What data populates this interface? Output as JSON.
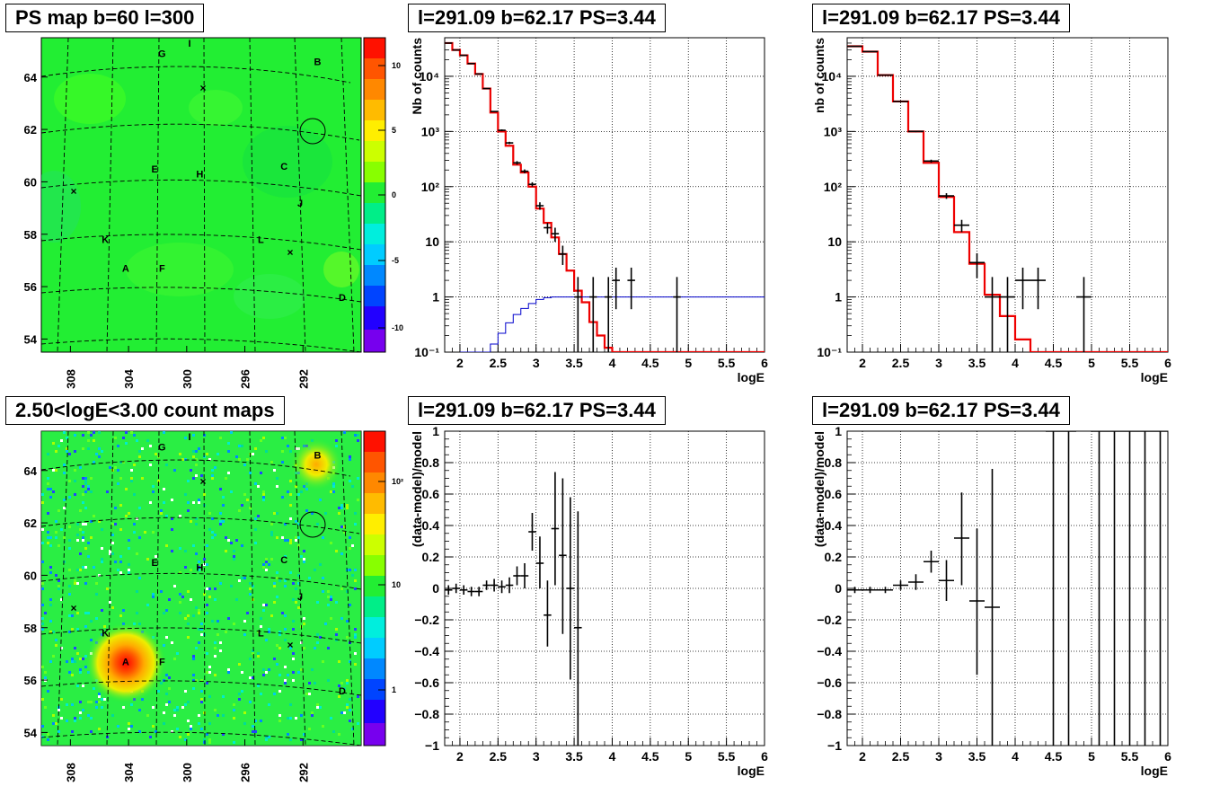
{
  "panels": {
    "map_top_title": "PS map b=60 l=300",
    "map_bottom_title": "2.50<logE<3.00 count maps",
    "spec_title": "l=291.09 b=62.17 PS=3.44"
  },
  "map": {
    "lat_ticks": [
      "54",
      "56",
      "58",
      "60",
      "62",
      "64"
    ],
    "lon_ticks": [
      "308",
      "304",
      "300",
      "296",
      "292"
    ],
    "sources": [
      {
        "label": "A",
        "lon": 304.2,
        "lat": 56.7
      },
      {
        "label": "B",
        "lon": 291.0,
        "lat": 64.6
      },
      {
        "label": "C",
        "lon": 293.3,
        "lat": 60.6
      },
      {
        "label": "D",
        "lon": 289.3,
        "lat": 55.6
      },
      {
        "label": "E",
        "lon": 302.2,
        "lat": 60.5
      },
      {
        "label": "F",
        "lon": 301.7,
        "lat": 56.7
      },
      {
        "label": "G",
        "lon": 301.7,
        "lat": 64.9
      },
      {
        "label": "H",
        "lon": 299.1,
        "lat": 60.3
      },
      {
        "label": "I",
        "lon": 299.8,
        "lat": 65.3
      },
      {
        "label": "J",
        "lon": 292.2,
        "lat": 59.2
      },
      {
        "label": "K",
        "lon": 305.6,
        "lat": 57.8
      },
      {
        "label": "L",
        "lon": 294.9,
        "lat": 57.8
      }
    ],
    "ps_palette_ticks": [
      "10",
      "5",
      "0",
      "-5",
      "-10"
    ],
    "count_palette_ticks": [
      "10²",
      "10",
      "1"
    ]
  },
  "colors": {
    "model": "#ee0000",
    "efficiency": "#0000cc",
    "data": "#000000",
    "map_fill": "#22ee33"
  },
  "chart_data": [
    {
      "type": "line",
      "id": "spectrum-full",
      "title": "l=291.09 b=62.17 PS=3.44",
      "xlabel": "logE",
      "ylabel": "Nb of counts",
      "xlim": [
        1.8,
        6
      ],
      "ylim": [
        0.1,
        50000
      ],
      "log_y": true,
      "grid": true,
      "x_ticks": [
        "2",
        "2.5",
        "3",
        "3.5",
        "4",
        "4.5",
        "5",
        "5.5",
        "6"
      ],
      "y_ticks": [
        "10⁻¹",
        "1",
        "10",
        "10²",
        "10³",
        "10⁴"
      ],
      "series": [
        {
          "role": "model",
          "bin_edges": [
            1.8,
            1.9,
            2.0,
            2.1,
            2.2,
            2.3,
            2.4,
            2.5,
            2.6,
            2.7,
            2.8,
            2.9,
            3.0,
            3.1,
            3.2,
            3.3,
            3.4,
            3.5,
            3.6,
            3.7,
            3.8,
            3.9,
            4.0,
            6.0
          ],
          "values": [
            40000,
            30000,
            24000,
            17000,
            11000,
            6000,
            2200,
            1000,
            550,
            250,
            180,
            100,
            40,
            22,
            12,
            6,
            3,
            1.3,
            0.8,
            0.35,
            0.2,
            0.12,
            0.1
          ]
        },
        {
          "role": "efficiency",
          "bin_edges": [
            2.0,
            2.1,
            2.2,
            2.3,
            2.4,
            2.5,
            2.6,
            2.7,
            2.8,
            2.9,
            3.0,
            3.1,
            3.2,
            6.0
          ],
          "values": [
            0.1,
            0.1,
            0.1,
            0.1,
            0.14,
            0.22,
            0.34,
            0.48,
            0.62,
            0.76,
            0.9,
            0.97,
            1.0
          ]
        },
        {
          "role": "data",
          "points": [
            {
              "x": 1.85,
              "y": 40000,
              "lo": 39500,
              "hi": 40500
            },
            {
              "x": 1.95,
              "y": 30000,
              "lo": 29600,
              "hi": 30400
            },
            {
              "x": 2.05,
              "y": 24000,
              "lo": 23600,
              "hi": 24400
            },
            {
              "x": 2.15,
              "y": 17000,
              "lo": 16700,
              "hi": 17300
            },
            {
              "x": 2.25,
              "y": 11000,
              "lo": 10800,
              "hi": 11200
            },
            {
              "x": 2.35,
              "y": 6000,
              "lo": 5900,
              "hi": 6100
            },
            {
              "x": 2.45,
              "y": 2300,
              "lo": 2250,
              "hi": 2350
            },
            {
              "x": 2.55,
              "y": 1050,
              "lo": 1010,
              "hi": 1090
            },
            {
              "x": 2.65,
              "y": 620,
              "lo": 590,
              "hi": 650
            },
            {
              "x": 2.75,
              "y": 270,
              "lo": 250,
              "hi": 290
            },
            {
              "x": 2.85,
              "y": 190,
              "lo": 175,
              "hi": 205
            },
            {
              "x": 2.95,
              "y": 110,
              "lo": 100,
              "hi": 120
            },
            {
              "x": 3.05,
              "y": 45,
              "lo": 38,
              "hi": 52
            },
            {
              "x": 3.15,
              "y": 18,
              "lo": 14,
              "hi": 22
            },
            {
              "x": 3.25,
              "y": 14,
              "lo": 10,
              "hi": 18
            },
            {
              "x": 3.35,
              "y": 6,
              "lo": 3.8,
              "hi": 8.5
            },
            {
              "x": 3.55,
              "y": 1,
              "lo": 0.1,
              "hi": 2.3
            },
            {
              "x": 3.75,
              "y": 1,
              "lo": 0.1,
              "hi": 2.3
            },
            {
              "x": 3.95,
              "y": 1,
              "lo": 0.1,
              "hi": 2.3
            },
            {
              "x": 4.05,
              "y": 2,
              "lo": 0.6,
              "hi": 3.4
            },
            {
              "x": 4.25,
              "y": 2,
              "lo": 0.6,
              "hi": 3.4
            },
            {
              "x": 4.85,
              "y": 1,
              "lo": 0.1,
              "hi": 2.3
            }
          ]
        }
      ]
    },
    {
      "type": "line",
      "id": "spectrum-rebinned",
      "title": "l=291.09 b=62.17 PS=3.44",
      "xlabel": "logE",
      "ylabel": "nb of counts",
      "xlim": [
        1.8,
        6
      ],
      "ylim": [
        0.1,
        50000
      ],
      "log_y": true,
      "grid": true,
      "x_ticks": [
        "2",
        "2.5",
        "3",
        "3.5",
        "4",
        "4.5",
        "5",
        "5.5",
        "6"
      ],
      "y_ticks": [
        "10⁻¹",
        "1",
        "10",
        "10²",
        "10³",
        "10⁴"
      ],
      "series": [
        {
          "role": "model",
          "bin_edges": [
            1.8,
            2.0,
            2.2,
            2.4,
            2.6,
            2.8,
            3.0,
            3.2,
            3.4,
            3.6,
            3.8,
            4.0,
            4.2,
            6.0
          ],
          "values": [
            35000,
            28000,
            10500,
            3500,
            1000,
            270,
            65,
            15,
            4,
            1.1,
            0.45,
            0.17,
            0.1
          ]
        },
        {
          "role": "data",
          "points": [
            {
              "x": 1.9,
              "y": 35000,
              "lo": 34600,
              "hi": 35400
            },
            {
              "x": 2.1,
              "y": 28000,
              "lo": 27600,
              "hi": 28400
            },
            {
              "x": 2.3,
              "y": 10500,
              "lo": 10300,
              "hi": 10700
            },
            {
              "x": 2.5,
              "y": 3500,
              "lo": 3440,
              "hi": 3560
            },
            {
              "x": 2.7,
              "y": 1000,
              "lo": 970,
              "hi": 1030
            },
            {
              "x": 2.9,
              "y": 290,
              "lo": 272,
              "hi": 308
            },
            {
              "x": 3.1,
              "y": 68,
              "lo": 60,
              "hi": 76
            },
            {
              "x": 3.3,
              "y": 20,
              "lo": 15,
              "hi": 25
            },
            {
              "x": 3.5,
              "y": 4.2,
              "lo": 2.2,
              "hi": 6.2
            },
            {
              "x": 3.7,
              "y": 1,
              "lo": 0.1,
              "hi": 2.3
            },
            {
              "x": 3.9,
              "y": 1,
              "lo": 0.1,
              "hi": 2.3
            },
            {
              "x": 4.1,
              "y": 2,
              "lo": 0.6,
              "hi": 3.4
            },
            {
              "x": 4.3,
              "y": 2,
              "lo": 0.6,
              "hi": 3.4
            },
            {
              "x": 4.9,
              "y": 1,
              "lo": 0.1,
              "hi": 2.3
            }
          ]
        }
      ]
    },
    {
      "type": "scatter",
      "id": "residual-full",
      "title": "l=291.09 b=62.17 PS=3.44",
      "xlabel": "logE",
      "ylabel": "(data-model)/model",
      "xlim": [
        1.8,
        6
      ],
      "ylim": [
        -1,
        1
      ],
      "grid": true,
      "x_ticks": [
        "2",
        "2.5",
        "3",
        "3.5",
        "4",
        "4.5",
        "5",
        "5.5",
        "6"
      ],
      "y_ticks": [
        "−1",
        "−0.8",
        "−0.6",
        "−0.4",
        "−0.2",
        "0",
        "0.2",
        "0.4",
        "0.6",
        "0.8",
        "1"
      ],
      "points": [
        {
          "x": 1.85,
          "y": -0.01,
          "lo": -0.04,
          "hi": 0.02
        },
        {
          "x": 1.95,
          "y": 0.0,
          "lo": -0.03,
          "hi": 0.03
        },
        {
          "x": 2.05,
          "y": -0.01,
          "lo": -0.04,
          "hi": 0.02
        },
        {
          "x": 2.15,
          "y": -0.02,
          "lo": -0.05,
          "hi": 0.01
        },
        {
          "x": 2.25,
          "y": -0.02,
          "lo": -0.05,
          "hi": 0.01
        },
        {
          "x": 2.35,
          "y": 0.02,
          "lo": -0.01,
          "hi": 0.05
        },
        {
          "x": 2.45,
          "y": 0.02,
          "lo": -0.02,
          "hi": 0.06
        },
        {
          "x": 2.55,
          "y": 0.01,
          "lo": -0.03,
          "hi": 0.05
        },
        {
          "x": 2.65,
          "y": 0.02,
          "lo": -0.03,
          "hi": 0.07
        },
        {
          "x": 2.75,
          "y": 0.08,
          "lo": 0.02,
          "hi": 0.14
        },
        {
          "x": 2.85,
          "y": 0.08,
          "lo": 0.0,
          "hi": 0.16
        },
        {
          "x": 2.95,
          "y": 0.36,
          "lo": 0.24,
          "hi": 0.48
        },
        {
          "x": 3.05,
          "y": 0.16,
          "lo": 0.0,
          "hi": 0.33
        },
        {
          "x": 3.15,
          "y": -0.17,
          "lo": -0.37,
          "hi": 0.05
        },
        {
          "x": 3.25,
          "y": 0.38,
          "lo": 0.02,
          "hi": 0.74
        },
        {
          "x": 3.35,
          "y": 0.21,
          "lo": -0.29,
          "hi": 0.7
        },
        {
          "x": 3.45,
          "y": 0.0,
          "lo": -0.58,
          "hi": 0.58
        },
        {
          "x": 3.55,
          "y": -0.25,
          "lo": -1.0,
          "hi": 0.49
        }
      ]
    },
    {
      "type": "scatter",
      "id": "residual-rebinned",
      "title": "l=291.09 b=62.17 PS=3.44",
      "xlabel": "logE",
      "ylabel": "(data-model)/model",
      "xlim": [
        1.8,
        6
      ],
      "ylim": [
        -1,
        1
      ],
      "grid": true,
      "x_ticks": [
        "2",
        "2.5",
        "3",
        "3.5",
        "4",
        "4.5",
        "5",
        "5.5",
        "6"
      ],
      "y_ticks": [
        "−1",
        "−0.8",
        "−0.6",
        "−0.4",
        "−0.2",
        "0",
        "0.2",
        "0.4",
        "0.6",
        "0.8",
        "1"
      ],
      "points": [
        {
          "x": 1.9,
          "y": -0.01,
          "lo": -0.03,
          "hi": 0.01
        },
        {
          "x": 2.1,
          "y": -0.01,
          "lo": -0.03,
          "hi": 0.01
        },
        {
          "x": 2.3,
          "y": -0.01,
          "lo": -0.03,
          "hi": 0.01
        },
        {
          "x": 2.5,
          "y": 0.02,
          "lo": -0.01,
          "hi": 0.05
        },
        {
          "x": 2.7,
          "y": 0.04,
          "lo": -0.01,
          "hi": 0.09
        },
        {
          "x": 2.9,
          "y": 0.17,
          "lo": 0.1,
          "hi": 0.24
        },
        {
          "x": 3.1,
          "y": 0.05,
          "lo": -0.08,
          "hi": 0.18
        },
        {
          "x": 3.3,
          "y": 0.32,
          "lo": 0.02,
          "hi": 0.61
        },
        {
          "x": 3.5,
          "y": -0.08,
          "lo": -0.55,
          "hi": 0.38
        },
        {
          "x": 3.7,
          "y": -0.12,
          "lo": -1.0,
          "hi": 0.76
        },
        {
          "x": 4.5,
          "y": 1.0,
          "lo": -1.0,
          "hi": 1.0
        },
        {
          "x": 4.7,
          "y": 1.0,
          "lo": -1.0,
          "hi": 1.0
        },
        {
          "x": 5.1,
          "y": 1.0,
          "lo": -1.0,
          "hi": 1.0
        },
        {
          "x": 5.3,
          "y": 1.0,
          "lo": -1.0,
          "hi": 1.0
        },
        {
          "x": 5.5,
          "y": 1.0,
          "lo": -1.0,
          "hi": 1.0
        },
        {
          "x": 5.7,
          "y": 1.0,
          "lo": -1.0,
          "hi": 1.0
        },
        {
          "x": 5.9,
          "y": 1.0,
          "lo": -1.0,
          "hi": 1.0
        }
      ]
    }
  ]
}
